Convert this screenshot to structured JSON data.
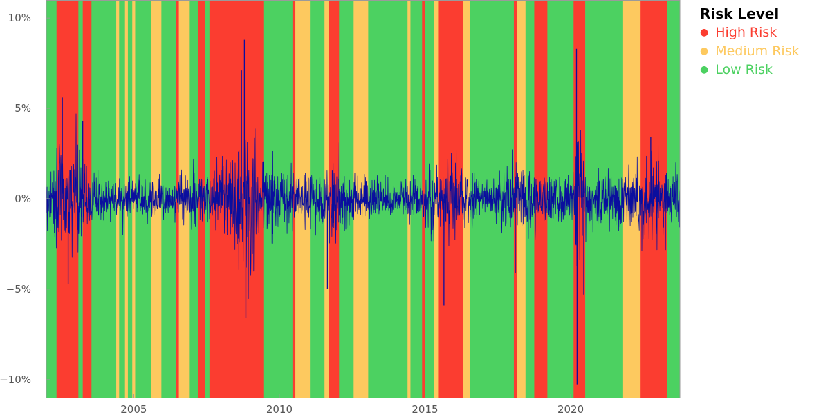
{
  "chart_data": {
    "type": "line",
    "title": "",
    "xlabel": "",
    "ylabel": "",
    "xlim": [
      2002.0,
      2023.75
    ],
    "ylim": [
      -11,
      11
    ],
    "xticks": [
      {
        "value": 2005,
        "label": "2005"
      },
      {
        "value": 2010,
        "label": "2010"
      },
      {
        "value": 2015,
        "label": "2015"
      },
      {
        "value": 2020,
        "label": "2020"
      }
    ],
    "yticks": [
      {
        "value": 10,
        "label": "10%"
      },
      {
        "value": 5,
        "label": "5%"
      },
      {
        "value": 0,
        "label": "0%"
      },
      {
        "value": -5,
        "label": "−5%"
      },
      {
        "value": -10,
        "label": "−10%"
      }
    ],
    "grid": false,
    "legend": {
      "title": "Risk Level",
      "position": "right",
      "items": [
        {
          "label": "High Risk",
          "color": "#fb3d30"
        },
        {
          "label": "Medium Risk",
          "color": "#fdc95f"
        },
        {
          "label": "Low Risk",
          "color": "#4cd161"
        }
      ]
    },
    "colors": {
      "High": "#fb3d30",
      "Medium": "#fdc95f",
      "Low": "#4cd161",
      "series": "#0a0e9e"
    },
    "regimes": [
      {
        "start": 2002.0,
        "end": 2002.35,
        "level": "Low"
      },
      {
        "start": 2002.35,
        "end": 2003.1,
        "level": "High"
      },
      {
        "start": 2003.1,
        "end": 2003.25,
        "level": "Low"
      },
      {
        "start": 2003.25,
        "end": 2003.55,
        "level": "High"
      },
      {
        "start": 2003.55,
        "end": 2004.4,
        "level": "Low"
      },
      {
        "start": 2004.4,
        "end": 2004.5,
        "level": "Medium"
      },
      {
        "start": 2004.5,
        "end": 2004.7,
        "level": "Low"
      },
      {
        "start": 2004.7,
        "end": 2004.8,
        "level": "Medium"
      },
      {
        "start": 2004.8,
        "end": 2004.95,
        "level": "Low"
      },
      {
        "start": 2004.95,
        "end": 2005.05,
        "level": "Medium"
      },
      {
        "start": 2005.05,
        "end": 2005.6,
        "level": "Low"
      },
      {
        "start": 2005.6,
        "end": 2005.95,
        "level": "Medium"
      },
      {
        "start": 2005.95,
        "end": 2006.45,
        "level": "Low"
      },
      {
        "start": 2006.45,
        "end": 2006.55,
        "level": "High"
      },
      {
        "start": 2006.55,
        "end": 2006.9,
        "level": "Medium"
      },
      {
        "start": 2006.9,
        "end": 2007.2,
        "level": "Low"
      },
      {
        "start": 2007.2,
        "end": 2007.45,
        "level": "High"
      },
      {
        "start": 2007.45,
        "end": 2007.6,
        "level": "Low"
      },
      {
        "start": 2007.6,
        "end": 2009.45,
        "level": "High"
      },
      {
        "start": 2009.45,
        "end": 2010.45,
        "level": "Low"
      },
      {
        "start": 2010.45,
        "end": 2010.55,
        "level": "High"
      },
      {
        "start": 2010.55,
        "end": 2011.05,
        "level": "Medium"
      },
      {
        "start": 2011.05,
        "end": 2011.55,
        "level": "Low"
      },
      {
        "start": 2011.55,
        "end": 2011.7,
        "level": "Medium"
      },
      {
        "start": 2011.7,
        "end": 2012.05,
        "level": "High"
      },
      {
        "start": 2012.05,
        "end": 2012.55,
        "level": "Low"
      },
      {
        "start": 2012.55,
        "end": 2013.05,
        "level": "Medium"
      },
      {
        "start": 2013.05,
        "end": 2014.4,
        "level": "Low"
      },
      {
        "start": 2014.4,
        "end": 2014.5,
        "level": "Medium"
      },
      {
        "start": 2014.5,
        "end": 2014.9,
        "level": "Low"
      },
      {
        "start": 2014.9,
        "end": 2015.0,
        "level": "High"
      },
      {
        "start": 2015.0,
        "end": 2015.3,
        "level": "Low"
      },
      {
        "start": 2015.3,
        "end": 2015.45,
        "level": "Medium"
      },
      {
        "start": 2015.45,
        "end": 2016.3,
        "level": "High"
      },
      {
        "start": 2016.3,
        "end": 2016.55,
        "level": "Medium"
      },
      {
        "start": 2016.55,
        "end": 2018.05,
        "level": "Low"
      },
      {
        "start": 2018.05,
        "end": 2018.15,
        "level": "High"
      },
      {
        "start": 2018.15,
        "end": 2018.45,
        "level": "Medium"
      },
      {
        "start": 2018.45,
        "end": 2018.75,
        "level": "Low"
      },
      {
        "start": 2018.75,
        "end": 2019.2,
        "level": "High"
      },
      {
        "start": 2019.2,
        "end": 2020.1,
        "level": "Low"
      },
      {
        "start": 2020.1,
        "end": 2020.5,
        "level": "High"
      },
      {
        "start": 2020.5,
        "end": 2021.8,
        "level": "Low"
      },
      {
        "start": 2021.8,
        "end": 2022.4,
        "level": "Medium"
      },
      {
        "start": 2022.4,
        "end": 2023.3,
        "level": "High"
      },
      {
        "start": 2023.3,
        "end": 2023.75,
        "level": "Low"
      }
    ],
    "volatility_profile": {
      "x": [
        2002.0,
        2002.5,
        2002.9,
        2003.5,
        2004.0,
        2006.4,
        2006.6,
        2007.6,
        2008.3,
        2008.8,
        2009.3,
        2010.0,
        2010.4,
        2010.7,
        2011.5,
        2011.9,
        2012.3,
        2014.0,
        2015.0,
        2015.8,
        2016.2,
        2017.0,
        2018.1,
        2018.9,
        2019.5,
        2020.1,
        2020.25,
        2020.5,
        2021.0,
        2022.0,
        2022.5,
        2023.0,
        2023.75
      ],
      "y": [
        1.1,
        1.9,
        1.7,
        1.0,
        0.6,
        0.6,
        0.9,
        0.8,
        1.1,
        2.7,
        1.3,
        0.8,
        1.1,
        0.8,
        0.9,
        1.5,
        0.8,
        0.6,
        0.8,
        1.4,
        1.0,
        0.5,
        1.0,
        1.0,
        0.7,
        1.0,
        3.2,
        1.0,
        0.8,
        1.1,
        1.4,
        1.2,
        0.9
      ]
    },
    "extremes": [
      {
        "x": 2002.55,
        "y": 5.6
      },
      {
        "x": 2002.75,
        "y": -4.7
      },
      {
        "x": 2003.25,
        "y": 4.3
      },
      {
        "x": 2008.8,
        "y": 8.8
      },
      {
        "x": 2008.85,
        "y": -6.6
      },
      {
        "x": 2008.7,
        "y": 7.1
      },
      {
        "x": 2011.65,
        "y": -5.0
      },
      {
        "x": 2015.65,
        "y": -5.9
      },
      {
        "x": 2018.1,
        "y": -4.1
      },
      {
        "x": 2020.2,
        "y": 8.3
      },
      {
        "x": 2020.22,
        "y": -10.3
      },
      {
        "x": 2020.45,
        "y": -5.3
      },
      {
        "x": 2022.75,
        "y": 3.4
      }
    ]
  }
}
